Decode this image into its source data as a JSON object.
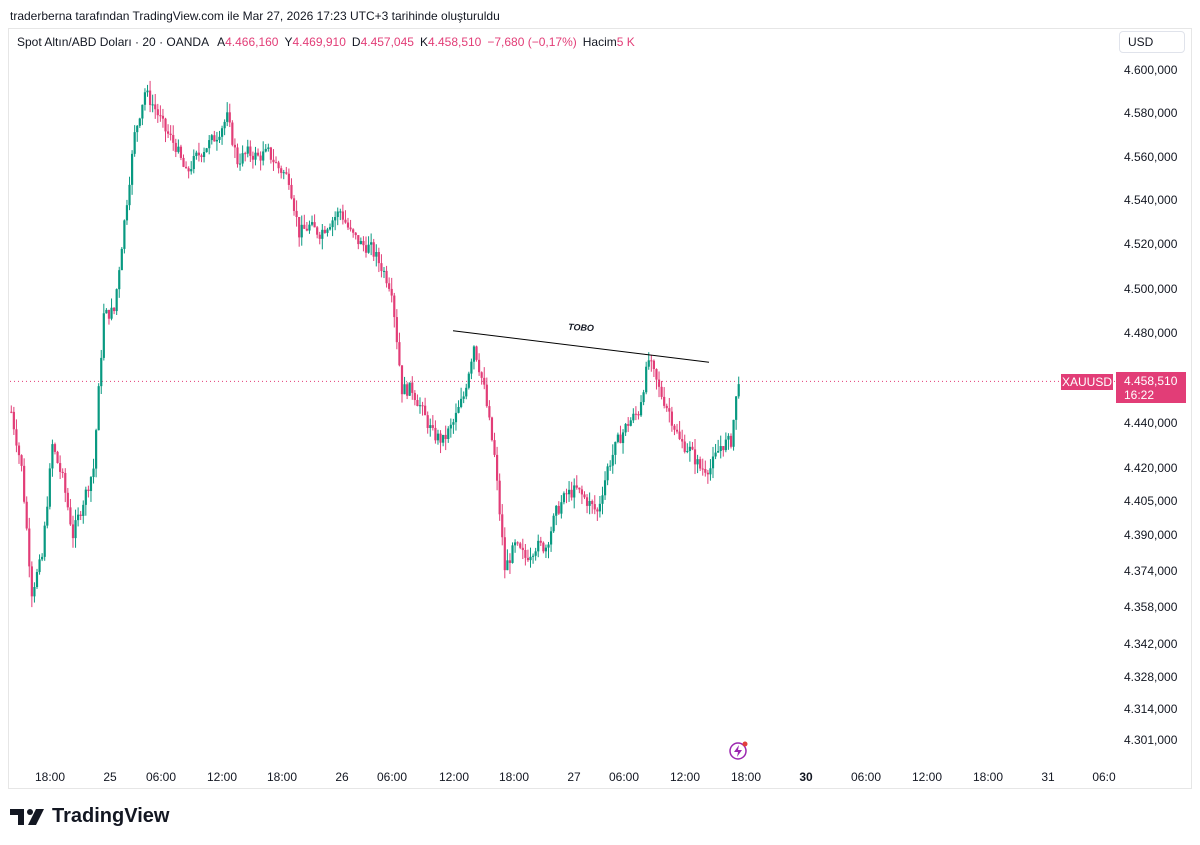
{
  "caption": "traderberna tarafından TradingView.com ile Mar 27, 2026 17:23 UTC+3 tarihinde oluşturuldu",
  "legend": {
    "symbol": "Spot Altın/ABD Doları · 20 · OANDA",
    "open_label": "A",
    "open": "4.466,160",
    "high_label": "Y",
    "high": "4.469,910",
    "low_label": "D",
    "low": "4.457,045",
    "close_label": "K",
    "close": "4.458,510",
    "change": "−7,680 (−0,17%)",
    "volume_label": "Hacim",
    "volume": "5 K"
  },
  "currency": "USD",
  "price_tag": {
    "symbol": "XAUUSD",
    "price": "4.458,510",
    "countdown": "16:22"
  },
  "logo_text": "TradingView",
  "colors": {
    "up": "#089981",
    "down": "#e23d77",
    "annotation": "#000000"
  },
  "chart_data": {
    "type": "candlestick",
    "title": "Spot Altın/ABD Doları · 20 · OANDA",
    "y_ticks": [
      4600000,
      4580000,
      4560000,
      4540000,
      4520000,
      4500000,
      4480000,
      4440000,
      4420000,
      4405000,
      4390000,
      4374000,
      4358000,
      4342000,
      4328000,
      4314000,
      4301000
    ],
    "y_tick_labels": [
      "4.600,000",
      "4.580,000",
      "4.560,000",
      "4.540,000",
      "4.520,000",
      "4.500,000",
      "4.480,000",
      "4.440,000",
      "4.420,000",
      "4.405,000",
      "4.390,000",
      "4.374,000",
      "4.358,000",
      "4.342,000",
      "4.328,000",
      "4.314,000",
      "4.301,000"
    ],
    "x_tick_labels": [
      "18:00",
      "25",
      "06:00",
      "12:00",
      "18:00",
      "26",
      "06:00",
      "12:00",
      "18:00",
      "27",
      "06:00",
      "12:00",
      "18:00",
      "30",
      "06:00",
      "12:00",
      "18:00",
      "31",
      "06:0"
    ],
    "x_tick_bold": [
      false,
      false,
      false,
      false,
      false,
      false,
      false,
      false,
      false,
      false,
      false,
      false,
      false,
      true,
      false,
      false,
      false,
      false,
      false
    ],
    "last_price": 4458510,
    "annotation": {
      "text": "TOBO",
      "start_price": 4481000,
      "end_price": 4467000
    },
    "path_points": [
      [
        0,
        4445
      ],
      [
        4,
        4420
      ],
      [
        8,
        4365
      ],
      [
        12,
        4380
      ],
      [
        16,
        4430
      ],
      [
        20,
        4415
      ],
      [
        24,
        4390
      ],
      [
        28,
        4405
      ],
      [
        32,
        4420
      ],
      [
        36,
        4488
      ],
      [
        40,
        4490
      ],
      [
        44,
        4530
      ],
      [
        48,
        4570
      ],
      [
        52,
        4590
      ],
      [
        56,
        4582
      ],
      [
        60,
        4572
      ],
      [
        64,
        4565
      ],
      [
        68,
        4552
      ],
      [
        72,
        4560
      ],
      [
        76,
        4565
      ],
      [
        80,
        4570
      ],
      [
        84,
        4578
      ],
      [
        88,
        4558
      ],
      [
        92,
        4562
      ],
      [
        96,
        4560
      ],
      [
        100,
        4562
      ],
      [
        104,
        4555
      ],
      [
        108,
        4550
      ],
      [
        112,
        4525
      ],
      [
        116,
        4528
      ],
      [
        120,
        4525
      ],
      [
        124,
        4530
      ],
      [
        128,
        4535
      ],
      [
        132,
        4525
      ],
      [
        136,
        4520
      ],
      [
        140,
        4518
      ],
      [
        144,
        4510
      ],
      [
        148,
        4500
      ],
      [
        152,
        4455
      ],
      [
        156,
        4455
      ],
      [
        160,
        4445
      ],
      [
        164,
        4435
      ],
      [
        168,
        4432
      ],
      [
        172,
        4440
      ],
      [
        176,
        4452
      ],
      [
        180,
        4475
      ],
      [
        184,
        4455
      ],
      [
        188,
        4425
      ],
      [
        192,
        4375
      ],
      [
        196,
        4385
      ],
      [
        200,
        4380
      ],
      [
        204,
        4385
      ],
      [
        208,
        4385
      ],
      [
        212,
        4400
      ],
      [
        216,
        4408
      ],
      [
        220,
        4410
      ],
      [
        224,
        4405
      ],
      [
        228,
        4400
      ],
      [
        232,
        4420
      ],
      [
        236,
        4432
      ],
      [
        240,
        4440
      ],
      [
        244,
        4445
      ],
      [
        248,
        4468
      ],
      [
        252,
        4455
      ],
      [
        256,
        4445
      ],
      [
        260,
        4432
      ],
      [
        264,
        4428
      ],
      [
        268,
        4420
      ],
      [
        272,
        4420
      ],
      [
        276,
        4430
      ],
      [
        280,
        4432
      ],
      [
        283,
        4460
      ]
    ]
  }
}
